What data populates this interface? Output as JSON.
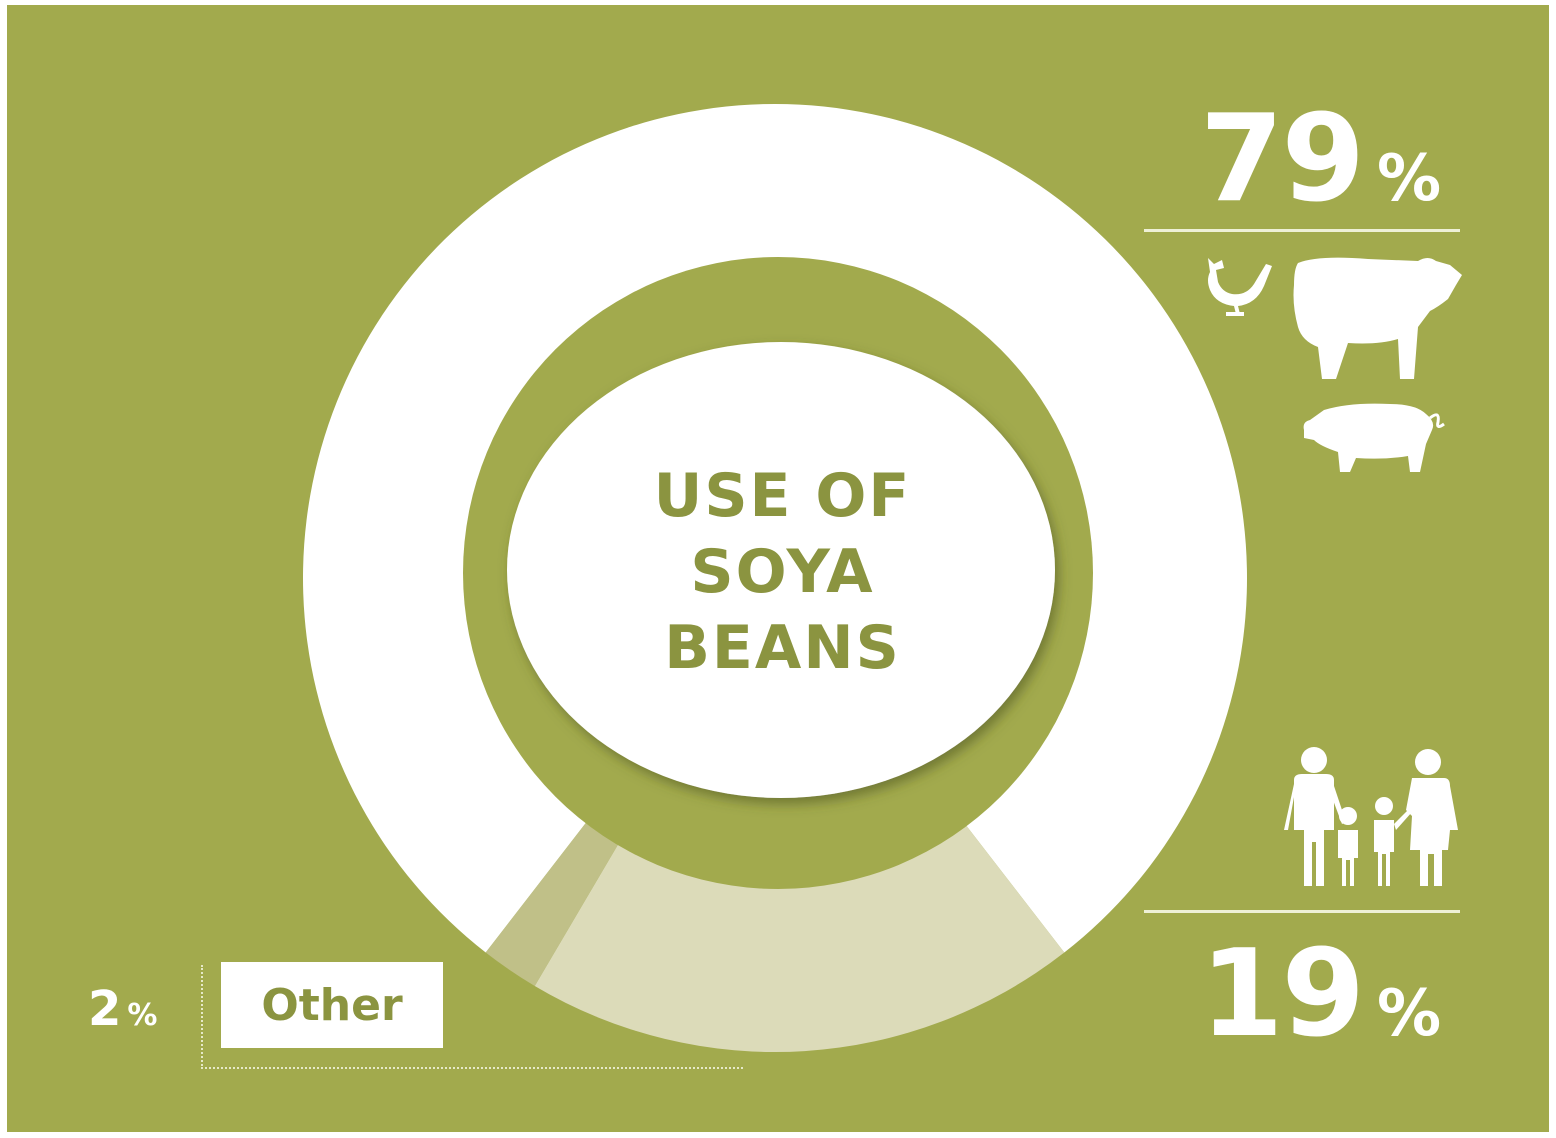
{
  "colors": {
    "background": "#a2aa4d",
    "feed_segment": "#ffffff",
    "food_segment": "#dcdbb9",
    "other_segment": "#c0c088",
    "inner_ring": "#a2aa4d",
    "title_text": "#8b9440"
  },
  "chart_data": {
    "type": "pie",
    "title": "USE OF SOYA BEANS",
    "slices": [
      {
        "label": "",
        "value": 79,
        "color": "#ffffff",
        "icons": [
          "chicken-icon",
          "cow-icon",
          "pig-icon"
        ]
      },
      {
        "label": "",
        "value": 19,
        "color": "#dcdbb9",
        "icons": [
          "family-icon"
        ]
      },
      {
        "label": "Other",
        "value": 2,
        "color": "#c0c088"
      }
    ]
  },
  "center": {
    "title_lines": [
      "USE OF",
      "SOYA",
      "BEANS"
    ]
  },
  "labels": {
    "feed": {
      "number": "79",
      "percent_sign": "%"
    },
    "food": {
      "number": "19",
      "percent_sign": "%"
    },
    "other": {
      "number": "2",
      "percent_sign": "%",
      "box_text": "Other"
    }
  }
}
